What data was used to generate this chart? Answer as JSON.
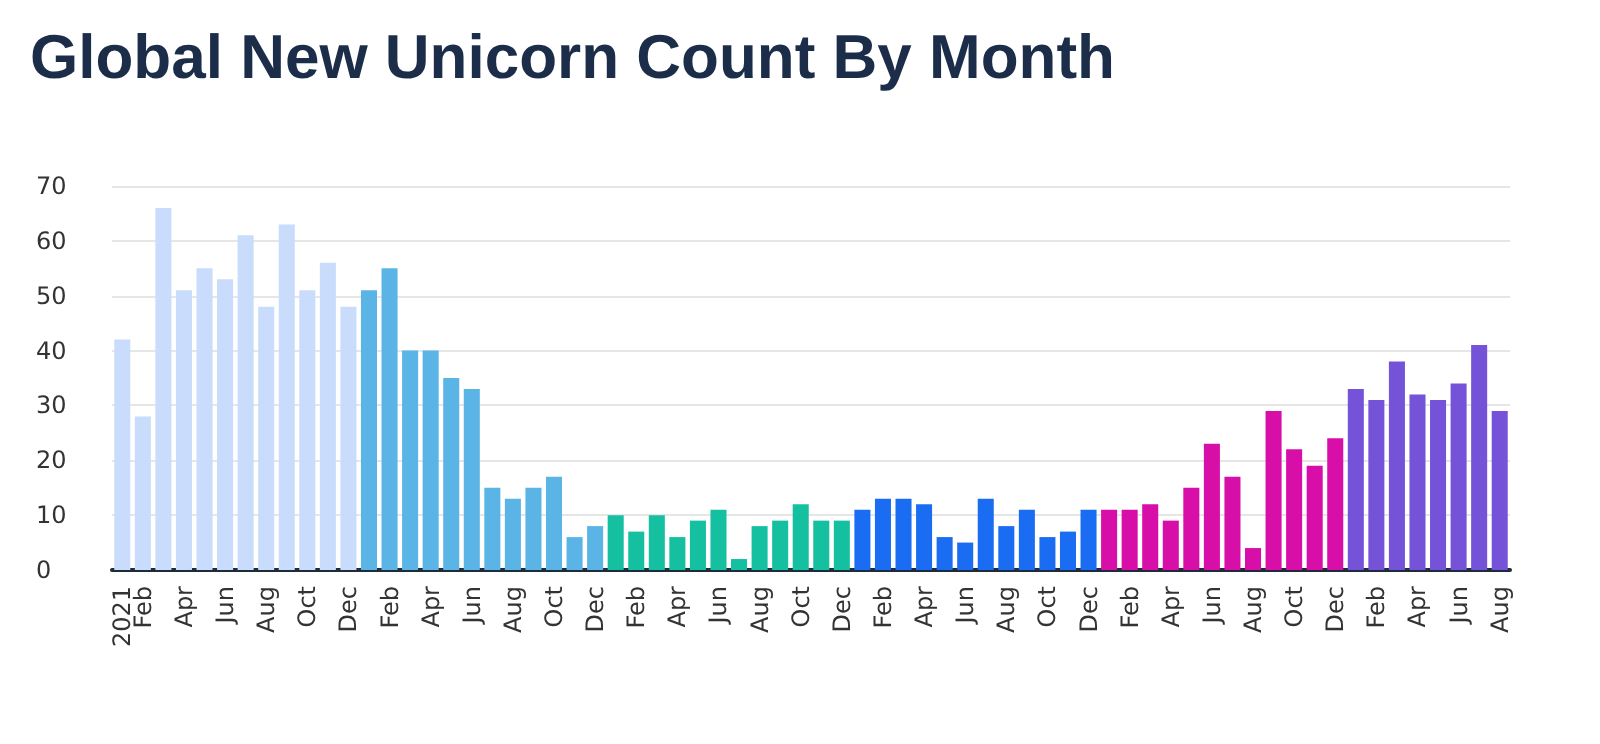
{
  "chart_data": {
    "type": "bar",
    "title": "Global New Unicorn Count By Month",
    "categories": [
      "2021",
      "Feb",
      null,
      "Apr",
      null,
      "Jun",
      null,
      "Aug",
      null,
      "Oct",
      null,
      "Dec",
      null,
      "Feb",
      null,
      "Apr",
      null,
      "Jun",
      null,
      "Aug",
      null,
      "Oct",
      null,
      "Dec",
      null,
      "Feb",
      null,
      "Apr",
      null,
      "Jun",
      null,
      "Aug",
      null,
      "Oct",
      null,
      "Dec",
      null,
      "Feb",
      null,
      "Apr",
      null,
      "Jun",
      null,
      "Aug",
      null,
      "Oct",
      null,
      "Dec",
      null,
      "Feb",
      null,
      "Apr",
      null,
      "Jun",
      null,
      "Aug",
      null,
      "Oct",
      null,
      "Dec",
      null,
      "Feb",
      null,
      "Apr",
      null,
      "Jun",
      null,
      "Aug"
    ],
    "values": [
      42,
      28,
      66,
      51,
      55,
      53,
      61,
      48,
      63,
      51,
      56,
      48,
      51,
      55,
      40,
      40,
      35,
      33,
      15,
      13,
      15,
      17,
      6,
      8,
      10,
      7,
      10,
      6,
      9,
      11,
      2,
      8,
      9,
      12,
      9,
      9,
      11,
      13,
      13,
      12,
      6,
      5,
      13,
      8,
      11,
      6,
      7,
      11,
      11,
      11,
      12,
      9,
      15,
      23,
      17,
      4,
      29,
      22,
      19,
      24,
      33,
      31,
      38,
      32,
      31,
      34,
      41,
      29
    ],
    "colors": [
      "#c9dcfb",
      "#c9dcfb",
      "#c9dcfb",
      "#c9dcfb",
      "#c9dcfb",
      "#c9dcfb",
      "#c9dcfb",
      "#c9dcfb",
      "#c9dcfb",
      "#c9dcfb",
      "#c9dcfb",
      "#c9dcfb",
      "#5ab4e5",
      "#5ab4e5",
      "#5ab4e5",
      "#5ab4e5",
      "#5ab4e5",
      "#5ab4e5",
      "#5ab4e5",
      "#5ab4e5",
      "#5ab4e5",
      "#5ab4e5",
      "#5ab4e5",
      "#5ab4e5",
      "#14c0a0",
      "#14c0a0",
      "#14c0a0",
      "#14c0a0",
      "#14c0a0",
      "#14c0a0",
      "#14c0a0",
      "#14c0a0",
      "#14c0a0",
      "#14c0a0",
      "#14c0a0",
      "#14c0a0",
      "#1a6cf2",
      "#1a6cf2",
      "#1a6cf2",
      "#1a6cf2",
      "#1a6cf2",
      "#1a6cf2",
      "#1a6cf2",
      "#1a6cf2",
      "#1a6cf2",
      "#1a6cf2",
      "#1a6cf2",
      "#1a6cf2",
      "#d80ea8",
      "#d80ea8",
      "#d80ea8",
      "#d80ea8",
      "#d80ea8",
      "#d80ea8",
      "#d80ea8",
      "#d80ea8",
      "#d80ea8",
      "#d80ea8",
      "#d80ea8",
      "#d80ea8",
      "#7453d8",
      "#7453d8",
      "#7453d8",
      "#7453d8",
      "#7453d8",
      "#7453d8",
      "#7453d8",
      "#7453d8"
    ],
    "ylim": [
      0,
      70
    ],
    "yticks": [
      0,
      10,
      20,
      30,
      40,
      50,
      60,
      70
    ],
    "grid": "y"
  }
}
